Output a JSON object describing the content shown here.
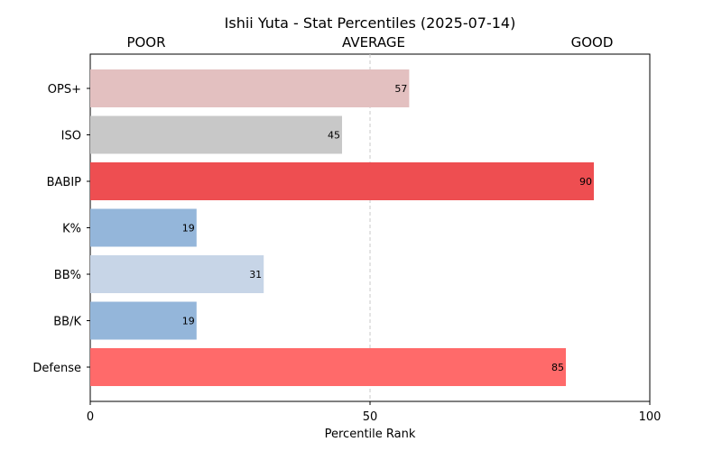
{
  "chart_data": {
    "type": "bar",
    "orientation": "horizontal",
    "title": "Ishii Yuta - Stat Percentiles (2025-07-14)",
    "zone_labels": [
      "POOR",
      "AVERAGE",
      "GOOD"
    ],
    "xlabel": "Percentile Rank",
    "ylabel": "",
    "xlim": [
      0,
      100
    ],
    "xticks": [
      0,
      50,
      100
    ],
    "reference_line": 50,
    "categories": [
      "OPS+",
      "ISO",
      "BABIP",
      "K%",
      "BB%",
      "BB/K",
      "Defense"
    ],
    "values": [
      57,
      45,
      90,
      19,
      31,
      19,
      85
    ],
    "colors": [
      "#e3c0c0",
      "#c8c8c8",
      "#ee4e51",
      "#94b6da",
      "#c7d5e7",
      "#94b6da",
      "#ff6a6a"
    ],
    "data_labels": [
      "57",
      "45",
      "90",
      "19",
      "31",
      "19",
      "85"
    ],
    "grid": false,
    "legend": "none"
  }
}
